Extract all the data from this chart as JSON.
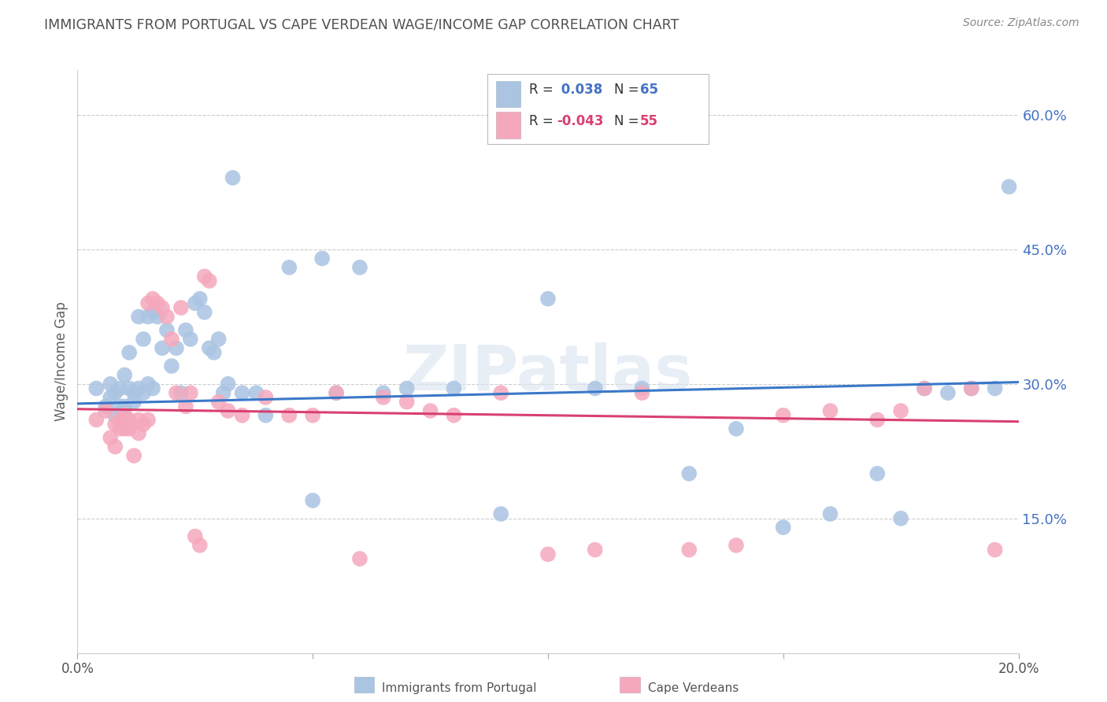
{
  "title": "IMMIGRANTS FROM PORTUGAL VS CAPE VERDEAN WAGE/INCOME GAP CORRELATION CHART",
  "source": "Source: ZipAtlas.com",
  "ylabel": "Wage/Income Gap",
  "xlim": [
    0.0,
    0.2
  ],
  "ylim": [
    0.0,
    0.65
  ],
  "yticks": [
    0.15,
    0.3,
    0.45,
    0.6
  ],
  "ytick_labels": [
    "15.0%",
    "30.0%",
    "45.0%",
    "60.0%"
  ],
  "xticks": [
    0.0,
    0.05,
    0.1,
    0.15,
    0.2
  ],
  "xtick_labels": [
    "0.0%",
    "",
    "",
    "",
    "20.0%"
  ],
  "legend_line1": "R =  0.038   N = 65",
  "legend_line2": "R = -0.043   N = 55",
  "blue_color": "#aac4e2",
  "pink_color": "#f5a8bc",
  "trend_blue": "#3a78c9",
  "trend_pink": "#d94070",
  "title_color": "#505050",
  "grid_color": "#cccccc",
  "right_axis_color": "#4472c4",
  "watermark": "ZIPatlas",
  "blue_scatter_x": [
    0.004,
    0.006,
    0.007,
    0.007,
    0.008,
    0.008,
    0.009,
    0.009,
    0.01,
    0.01,
    0.011,
    0.011,
    0.012,
    0.012,
    0.013,
    0.013,
    0.014,
    0.014,
    0.015,
    0.015,
    0.016,
    0.016,
    0.017,
    0.018,
    0.019,
    0.02,
    0.021,
    0.022,
    0.023,
    0.024,
    0.025,
    0.026,
    0.027,
    0.028,
    0.029,
    0.03,
    0.031,
    0.032,
    0.033,
    0.035,
    0.038,
    0.04,
    0.045,
    0.05,
    0.052,
    0.055,
    0.06,
    0.065,
    0.07,
    0.08,
    0.09,
    0.1,
    0.11,
    0.12,
    0.13,
    0.14,
    0.15,
    0.16,
    0.17,
    0.175,
    0.18,
    0.185,
    0.19,
    0.195,
    0.198
  ],
  "blue_scatter_y": [
    0.295,
    0.275,
    0.285,
    0.3,
    0.29,
    0.265,
    0.275,
    0.295,
    0.275,
    0.31,
    0.295,
    0.335,
    0.29,
    0.28,
    0.295,
    0.375,
    0.29,
    0.35,
    0.3,
    0.375,
    0.295,
    0.38,
    0.375,
    0.34,
    0.36,
    0.32,
    0.34,
    0.29,
    0.36,
    0.35,
    0.39,
    0.395,
    0.38,
    0.34,
    0.335,
    0.35,
    0.29,
    0.3,
    0.53,
    0.29,
    0.29,
    0.265,
    0.43,
    0.17,
    0.44,
    0.29,
    0.43,
    0.29,
    0.295,
    0.295,
    0.155,
    0.395,
    0.295,
    0.295,
    0.2,
    0.25,
    0.14,
    0.155,
    0.2,
    0.15,
    0.295,
    0.29,
    0.295,
    0.295,
    0.52
  ],
  "pink_scatter_x": [
    0.004,
    0.006,
    0.007,
    0.008,
    0.008,
    0.009,
    0.009,
    0.01,
    0.01,
    0.011,
    0.011,
    0.012,
    0.013,
    0.013,
    0.014,
    0.015,
    0.015,
    0.016,
    0.017,
    0.018,
    0.019,
    0.02,
    0.021,
    0.022,
    0.023,
    0.024,
    0.025,
    0.026,
    0.027,
    0.028,
    0.03,
    0.032,
    0.035,
    0.04,
    0.045,
    0.05,
    0.055,
    0.06,
    0.065,
    0.07,
    0.075,
    0.08,
    0.09,
    0.1,
    0.11,
    0.12,
    0.13,
    0.14,
    0.15,
    0.16,
    0.17,
    0.175,
    0.18,
    0.19,
    0.195
  ],
  "pink_scatter_y": [
    0.26,
    0.27,
    0.24,
    0.255,
    0.23,
    0.25,
    0.26,
    0.25,
    0.265,
    0.25,
    0.26,
    0.22,
    0.245,
    0.26,
    0.255,
    0.26,
    0.39,
    0.395,
    0.39,
    0.385,
    0.375,
    0.35,
    0.29,
    0.385,
    0.275,
    0.29,
    0.13,
    0.12,
    0.42,
    0.415,
    0.28,
    0.27,
    0.265,
    0.285,
    0.265,
    0.265,
    0.29,
    0.105,
    0.285,
    0.28,
    0.27,
    0.265,
    0.29,
    0.11,
    0.115,
    0.29,
    0.115,
    0.12,
    0.265,
    0.27,
    0.26,
    0.27,
    0.295,
    0.295,
    0.115
  ],
  "blue_trend_x": [
    0.0,
    0.2
  ],
  "blue_trend_y": [
    0.278,
    0.302
  ],
  "pink_trend_x": [
    0.0,
    0.2
  ],
  "pink_trend_y": [
    0.272,
    0.258
  ]
}
